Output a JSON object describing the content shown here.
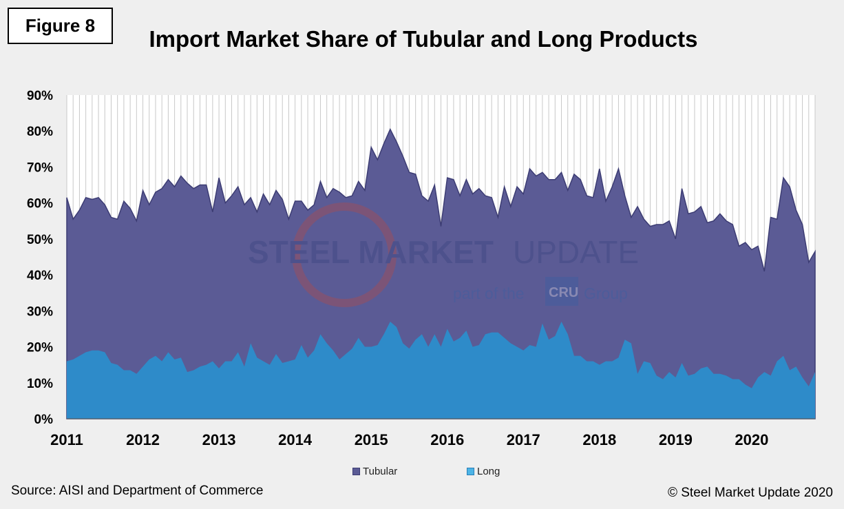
{
  "figure_label": "Figure 8",
  "source": "Source: AISI and Department of Commerce",
  "copyright": "© Steel Market Update 2020",
  "watermark": {
    "line1_bold": "STEEL MARKET",
    "line1_light": "UPDATE",
    "line2_pre": "part of the",
    "badge": "CRU",
    "line2_post": "Group"
  },
  "colors": {
    "tubular_fill": "#5b5b95",
    "tubular_line": "#3c3c73",
    "long_fill": "#2e8bc9",
    "long_swatch": "#4cb4e6",
    "plot_bg": "#ffffff",
    "gridline": "#c8c8c8",
    "background": "#efefef"
  },
  "chart_data": {
    "type": "area",
    "title": "Import Market Share of Tubular and Long Products",
    "xlabel": "",
    "ylabel": "",
    "ylim": [
      0,
      90
    ],
    "y_ticks": [
      "0%",
      "10%",
      "20%",
      "30%",
      "40%",
      "50%",
      "60%",
      "70%",
      "80%",
      "90%"
    ],
    "x_tick_labels": [
      "2011",
      "2012",
      "2013",
      "2014",
      "2015",
      "2016",
      "2017",
      "2018",
      "2019",
      "2020"
    ],
    "x_start": "2011-01",
    "frequency": "monthly",
    "grid": "vertical",
    "legend_position": "bottom",
    "series": [
      {
        "name": "Tubular",
        "values": [
          61.5,
          55.5,
          58,
          61.5,
          61,
          61.5,
          59.5,
          56,
          55.5,
          60.5,
          58.5,
          55,
          63.5,
          59.5,
          63,
          64,
          66.5,
          64.5,
          67.5,
          65.5,
          64,
          65,
          65,
          57.5,
          67,
          60,
          62,
          64.5,
          59.5,
          61.5,
          57.5,
          62.5,
          59.5,
          63.5,
          61,
          55.5,
          60.5,
          60.5,
          58,
          59.5,
          66,
          61.5,
          64,
          63,
          61.5,
          62,
          66,
          63.5,
          75.5,
          72,
          76.5,
          80.5,
          77,
          73,
          68.5,
          68,
          62,
          60.5,
          65,
          53.5,
          67,
          66.5,
          62,
          66.5,
          62.5,
          64,
          62,
          61.5,
          56,
          64.5,
          59,
          64.5,
          62.5,
          69.5,
          67.5,
          68.5,
          66.5,
          66.5,
          68.5,
          63.5,
          68,
          66.5,
          62,
          61.5,
          69.5,
          60.5,
          64.5,
          69.5,
          62,
          56,
          59,
          55.5,
          53.5,
          54,
          54,
          55,
          50,
          64,
          57,
          57.5,
          59,
          54.5,
          55,
          57,
          55,
          54,
          48,
          49,
          47,
          48,
          41,
          56,
          55.5,
          67,
          64.5,
          58,
          54,
          43.5,
          46.5
        ]
      },
      {
        "name": "Long",
        "values": [
          16,
          16.5,
          17.5,
          18.5,
          19,
          19,
          18.5,
          15.5,
          15,
          13.5,
          13.5,
          12.5,
          14.5,
          16.5,
          17.5,
          16,
          18.5,
          16.5,
          17,
          13,
          13.5,
          14.5,
          15,
          16,
          14,
          16,
          16,
          18.5,
          14.5,
          21,
          17,
          16,
          15,
          18,
          15.5,
          16,
          16.5,
          20.5,
          17,
          19,
          23.5,
          21,
          19,
          16.5,
          18,
          19.5,
          22.5,
          20,
          20,
          20.5,
          23.5,
          27,
          25.5,
          21,
          19.5,
          22,
          23.5,
          20,
          23.5,
          20,
          25,
          21.5,
          22.5,
          24.5,
          20,
          20.5,
          23.5,
          24,
          24,
          22.5,
          21,
          20,
          19,
          20.5,
          20,
          26.5,
          22,
          23,
          27,
          23.5,
          17.5,
          17.5,
          16,
          16,
          15,
          16,
          16,
          17,
          22,
          21,
          12.5,
          16,
          15.5,
          12,
          11,
          13,
          11.5,
          15.5,
          12,
          12.5,
          14,
          14.5,
          12.5,
          12.5,
          12,
          11,
          11,
          9.5,
          8.5,
          11.5,
          13,
          12,
          16,
          17.5,
          13.5,
          14.5,
          11.5,
          9,
          13
        ]
      }
    ]
  }
}
